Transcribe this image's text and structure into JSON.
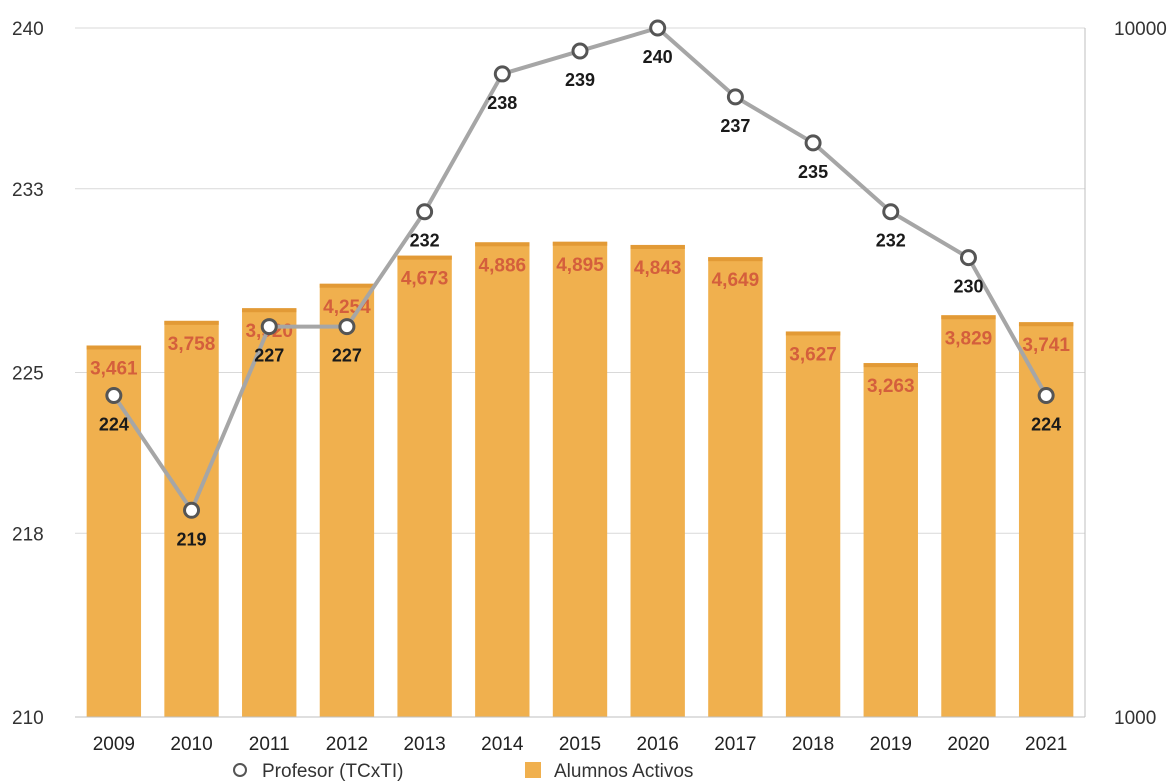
{
  "chart_data": {
    "type": "bar",
    "categories": [
      "2009",
      "2010",
      "2011",
      "2012",
      "2013",
      "2014",
      "2015",
      "2016",
      "2017",
      "2018",
      "2019",
      "2020",
      "2021"
    ],
    "series": [
      {
        "name": "Alumnos Activos",
        "kind": "bar",
        "axis": "right",
        "color": "#f0b04e",
        "values": [
          3461,
          3758,
          3920,
          4254,
          4673,
          4886,
          4895,
          4843,
          4649,
          3627,
          3263,
          3829,
          3741
        ],
        "labels": [
          "3,461",
          "3,758",
          "3,920",
          "4,254",
          "4,673",
          "4,886",
          "4,895",
          "4,843",
          "4,649",
          "3,627",
          "3,263",
          "3,829",
          "3,741"
        ]
      },
      {
        "name": "Profesor (TCxTI)",
        "kind": "line",
        "axis": "left",
        "color": "#a6a6a6",
        "marker_stroke": "#555555",
        "values": [
          224,
          219,
          227,
          227,
          232,
          238,
          239,
          240,
          237,
          235,
          232,
          230,
          224
        ],
        "labels": [
          "224",
          "219",
          "227",
          "227",
          "232",
          "238",
          "239",
          "240",
          "237",
          "235",
          "232",
          "230",
          "224"
        ]
      }
    ],
    "y_left": {
      "ticks": [
        "210",
        "218",
        "225",
        "233",
        "240"
      ],
      "ylim": [
        210,
        240
      ]
    },
    "y_right": {
      "ticks": [
        "1000",
        "10000"
      ],
      "scale": "log",
      "ylim": [
        1000,
        10000
      ]
    },
    "grid": true,
    "legend_position": "bottom",
    "title": "",
    "xlabel": "",
    "ylabel": ""
  }
}
